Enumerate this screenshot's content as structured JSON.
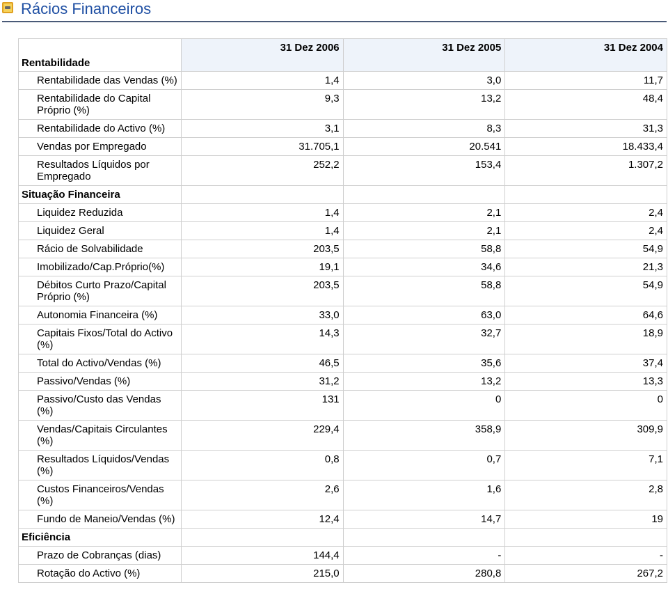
{
  "header": {
    "title": "Rácios Financeiros"
  },
  "table": {
    "columns": [
      "31 Dez 2006",
      "31 Dez 2005",
      "31 Dez 2004"
    ],
    "sections": [
      {
        "title": "Rentabilidade",
        "rows": [
          {
            "label": "Rentabilidade das Vendas (%)",
            "values": [
              "1,4",
              "3,0",
              "11,7"
            ]
          },
          {
            "label": "Rentabilidade do Capital Próprio (%)",
            "values": [
              "9,3",
              "13,2",
              "48,4"
            ]
          },
          {
            "label": "Rentabilidade do Activo (%)",
            "values": [
              "3,1",
              "8,3",
              "31,3"
            ]
          },
          {
            "label": "Vendas por Empregado",
            "values": [
              "31.705,1",
              "20.541",
              "18.433,4"
            ]
          },
          {
            "label": "Resultados Líquidos por Empregado",
            "values": [
              "252,2",
              "153,4",
              "1.307,2"
            ]
          }
        ]
      },
      {
        "title": "Situação Financeira",
        "rows": [
          {
            "label": "Liquidez Reduzida",
            "values": [
              "1,4",
              "2,1",
              "2,4"
            ]
          },
          {
            "label": "Liquidez Geral",
            "values": [
              "1,4",
              "2,1",
              "2,4"
            ]
          },
          {
            "label": "Rácio de Solvabilidade",
            "values": [
              "203,5",
              "58,8",
              "54,9"
            ]
          },
          {
            "label": "Imobilizado/Cap.Próprio(%)",
            "values": [
              "19,1",
              "34,6",
              "21,3"
            ]
          },
          {
            "label": "Débitos Curto Prazo/Capital Próprio (%)",
            "values": [
              "203,5",
              "58,8",
              "54,9"
            ]
          },
          {
            "label": "Autonomia Financeira (%)",
            "values": [
              "33,0",
              "63,0",
              "64,6"
            ]
          },
          {
            "label": "Capitais Fixos/Total do Activo (%)",
            "values": [
              "14,3",
              "32,7",
              "18,9"
            ]
          },
          {
            "label": "Total do Activo/Vendas (%)",
            "values": [
              "46,5",
              "35,6",
              "37,4"
            ]
          },
          {
            "label": "Passivo/Vendas (%)",
            "values": [
              "31,2",
              "13,2",
              "13,3"
            ]
          },
          {
            "label": "Passivo/Custo das Vendas (%)",
            "values": [
              "131",
              "0",
              "0"
            ]
          },
          {
            "label": "Vendas/Capitais Circulantes (%)",
            "values": [
              "229,4",
              "358,9",
              "309,9"
            ]
          },
          {
            "label": "Resultados Líquidos/Vendas (%)",
            "values": [
              "0,8",
              "0,7",
              "7,1"
            ]
          },
          {
            "label": "Custos Financeiros/Vendas (%)",
            "values": [
              "2,6",
              "1,6",
              "2,8"
            ]
          },
          {
            "label": "Fundo de Maneio/Vendas (%)",
            "values": [
              "12,4",
              "14,7",
              "19"
            ]
          }
        ]
      },
      {
        "title": "Eficiência",
        "rows": [
          {
            "label": "Prazo de Cobranças (dias)",
            "values": [
              "144,4",
              "-",
              "-"
            ]
          },
          {
            "label": "Rotação do Activo (%)",
            "values": [
              "215,0",
              "280,8",
              "267,2"
            ]
          }
        ]
      }
    ]
  }
}
